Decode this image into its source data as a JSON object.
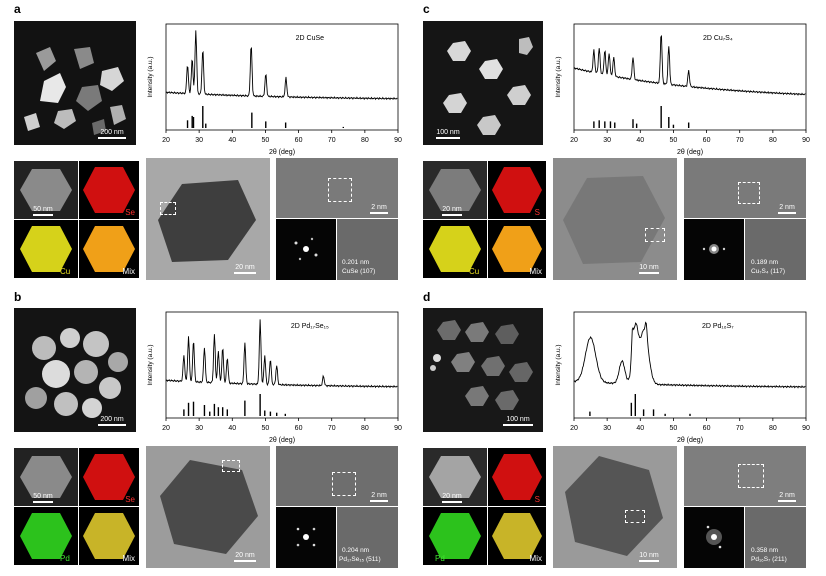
{
  "panels": {
    "a": {
      "letter": "a",
      "sem_scale": "200 nm",
      "eds_scale": "50 nm",
      "eds_labels": {
        "el1": "Se",
        "el2": "Cu",
        "mix": "Mix"
      },
      "tem_scale": "20 nm",
      "hr_scale": "2 nm",
      "d_spacing": "0.201 nm",
      "plane": "CuSe (107)",
      "colors": {
        "el1": "#d01010",
        "el2": "#d6d21a",
        "mix": "#f0a018"
      }
    },
    "b": {
      "letter": "b",
      "sem_scale": "200 nm",
      "eds_scale": "50 nm",
      "eds_labels": {
        "el1": "Se",
        "el2": "Pd",
        "mix": "Mix"
      },
      "tem_scale": "20 nm",
      "hr_scale": "2 nm",
      "d_spacing": "0.204 nm",
      "plane": "Pd₁₇Se₁₅ (511)",
      "colors": {
        "el1": "#d01010",
        "el2": "#2cc21c",
        "mix": "#c8b428"
      }
    },
    "c": {
      "letter": "c",
      "sem_scale": "100 nm",
      "eds_scale": "20 nm",
      "eds_labels": {
        "el1": "S",
        "el2": "Cu",
        "mix": "Mix"
      },
      "tem_scale": "10 nm",
      "hr_scale": "2 nm",
      "d_spacing": "0.189 nm",
      "plane": "Cu₇S₄ (117)",
      "colors": {
        "el1": "#d01010",
        "el2": "#d6d21a",
        "mix": "#f0a018"
      }
    },
    "d": {
      "letter": "d",
      "sem_scale": "100 nm",
      "eds_scale": "20 nm",
      "eds_labels": {
        "el1": "S",
        "el2": "Pd",
        "mix": "Mix"
      },
      "tem_scale": "10 nm",
      "hr_scale": "2 nm",
      "d_spacing": "0.358 nm",
      "plane": "Pd₁₆S₇ (211)",
      "colors": {
        "el1": "#d01010",
        "el2": "#2cc21c",
        "mix": "#c8b428"
      }
    }
  },
  "chart_data": [
    {
      "panel": "a",
      "type": "line",
      "title": "2D CuSe",
      "xlabel": "2θ (deg)",
      "ylabel": "Intensity (a.u.)",
      "xlim": [
        20,
        90
      ],
      "xticks": [
        20,
        30,
        40,
        50,
        60,
        70,
        80,
        90
      ],
      "peaks": [
        [
          26.5,
          0.45
        ],
        [
          27.9,
          0.55
        ],
        [
          29.0,
          1.0
        ],
        [
          31.1,
          0.7
        ],
        [
          45.7,
          0.8
        ],
        [
          50.1,
          0.35
        ],
        [
          56.2,
          0.3
        ]
      ],
      "baseline": 0.12,
      "reference_sticks": [
        [
          26.5,
          0.35
        ],
        [
          27.9,
          0.55
        ],
        [
          28.3,
          0.5
        ],
        [
          31.1,
          1.0
        ],
        [
          32.0,
          0.2
        ],
        [
          45.9,
          0.7
        ],
        [
          50.1,
          0.3
        ],
        [
          56.1,
          0.25
        ],
        [
          73.5,
          0.05
        ]
      ]
    },
    {
      "panel": "b",
      "type": "line",
      "title": "2D Pd₁₇Se₁₅",
      "xlabel": "2θ (deg)",
      "ylabel": "Intensity (a.u.)",
      "xlim": [
        20,
        90
      ],
      "xticks": [
        20,
        30,
        40,
        50,
        60,
        70,
        80,
        90
      ],
      "peaks": [
        [
          25.4,
          0.4
        ],
        [
          26.8,
          0.7
        ],
        [
          28.3,
          0.65
        ],
        [
          31.6,
          0.55
        ],
        [
          34.6,
          0.75
        ],
        [
          35.8,
          0.5
        ],
        [
          37.1,
          0.55
        ],
        [
          38.5,
          0.4
        ],
        [
          43.8,
          0.65
        ],
        [
          48.4,
          1.0
        ],
        [
          49.8,
          0.45
        ],
        [
          51.5,
          0.4
        ],
        [
          53.4,
          0.3
        ],
        [
          67.5,
          0.15
        ]
      ],
      "baseline": 0.12,
      "reference_sticks": [
        [
          25.4,
          0.3
        ],
        [
          26.8,
          0.6
        ],
        [
          28.3,
          0.65
        ],
        [
          31.6,
          0.5
        ],
        [
          33.2,
          0.2
        ],
        [
          34.6,
          0.55
        ],
        [
          35.8,
          0.4
        ],
        [
          37.1,
          0.4
        ],
        [
          38.5,
          0.3
        ],
        [
          43.8,
          0.7
        ],
        [
          48.4,
          1.0
        ],
        [
          49.8,
          0.25
        ],
        [
          51.5,
          0.2
        ],
        [
          53.4,
          0.15
        ],
        [
          56.0,
          0.1
        ]
      ]
    },
    {
      "panel": "c",
      "type": "line",
      "title": "2D Cu₇S₄",
      "xlabel": "2θ (deg)",
      "ylabel": "Intensity (a.u.)",
      "xlim": [
        20,
        90
      ],
      "xticks": [
        20,
        30,
        40,
        50,
        60,
        70,
        80,
        90
      ],
      "peaks": [
        [
          26.0,
          0.35
        ],
        [
          27.6,
          0.4
        ],
        [
          29.3,
          0.38
        ],
        [
          30.6,
          0.35
        ],
        [
          32.0,
          0.3
        ],
        [
          37.8,
          0.35
        ],
        [
          46.3,
          0.8
        ],
        [
          48.6,
          0.6
        ],
        [
          54.6,
          0.25
        ]
      ],
      "baseline": 0.5,
      "reference_sticks": [
        [
          26.0,
          0.3
        ],
        [
          27.6,
          0.35
        ],
        [
          29.3,
          0.3
        ],
        [
          31.0,
          0.3
        ],
        [
          32.3,
          0.25
        ],
        [
          37.8,
          0.4
        ],
        [
          38.9,
          0.2
        ],
        [
          46.3,
          1.0
        ],
        [
          48.6,
          0.5
        ],
        [
          50.0,
          0.15
        ],
        [
          54.6,
          0.25
        ]
      ]
    },
    {
      "panel": "d",
      "type": "line",
      "title": "2D Pd₁₆S₇",
      "xlabel": "2θ (deg)",
      "ylabel": "Intensity (a.u.)",
      "xlim": [
        20,
        90
      ],
      "xticks": [
        20,
        30,
        40,
        50,
        60,
        70,
        80,
        90
      ],
      "broad_peaks": [
        [
          25.0,
          0.7,
          2.2
        ],
        [
          38.5,
          0.85,
          1.2
        ],
        [
          41.2,
          0.85,
          1.8
        ],
        [
          34.5,
          0.35,
          1.2
        ]
      ],
      "peaks": [
        [
          37.6,
          0.35
        ],
        [
          41.8,
          0.2
        ]
      ],
      "baseline": 0.1,
      "reference_sticks": [
        [
          24.8,
          0.2
        ],
        [
          37.3,
          0.6
        ],
        [
          38.5,
          1.0
        ],
        [
          41.0,
          0.3
        ],
        [
          44.0,
          0.3
        ],
        [
          47.5,
          0.1
        ],
        [
          55.0,
          0.1
        ]
      ]
    }
  ]
}
